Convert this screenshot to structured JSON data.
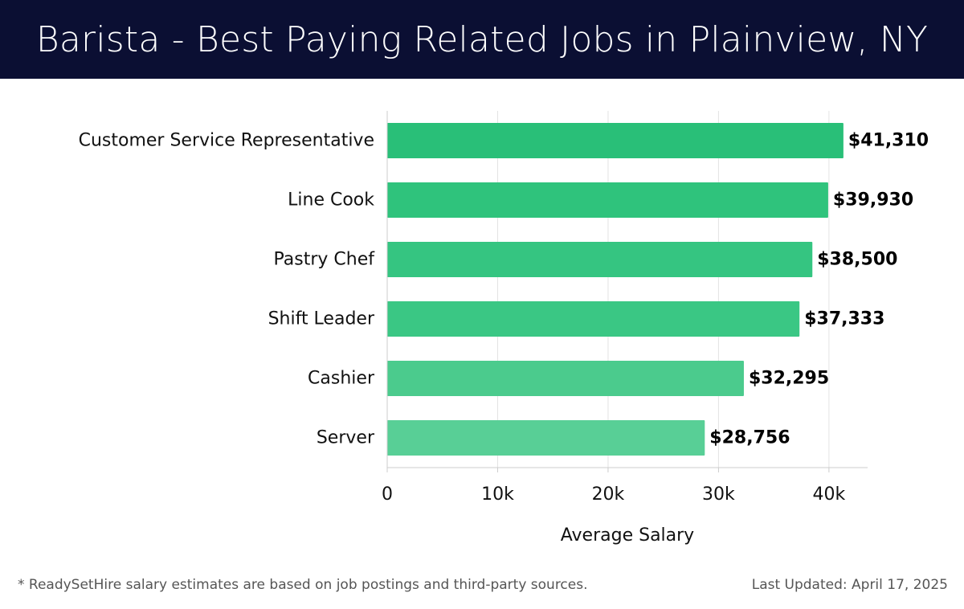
{
  "header": {
    "title": "Barista - Best Paying Related Jobs in Plainview, NY"
  },
  "colors": {
    "header_bg": "#0b0f33",
    "bar_gradient": [
      "#29bf78",
      "#2fc37c",
      "#35c581",
      "#3ac784",
      "#4bcb8d",
      "#58cf96"
    ]
  },
  "chart_data": {
    "type": "bar",
    "orientation": "horizontal",
    "categories": [
      "Customer Service Representative",
      "Line Cook",
      "Pastry Chef",
      "Shift Leader",
      "Cashier",
      "Server"
    ],
    "values": [
      41310,
      39930,
      38500,
      37333,
      32295,
      28756
    ],
    "value_labels": [
      "$41,310",
      "$39,930",
      "$38,500",
      "$37,333",
      "$32,295",
      "$28,756"
    ],
    "xlabel": "Average Salary",
    "ylabel": "",
    "xlim": [
      0,
      43500
    ],
    "xticks": [
      0,
      10000,
      20000,
      30000,
      40000
    ],
    "xtick_labels": [
      "0",
      "10k",
      "20k",
      "30k",
      "40k"
    ],
    "grid": "vertical"
  },
  "footer": {
    "note": "* ReadySetHire salary estimates are based on job postings and third-party sources.",
    "updated": "Last Updated: April 17, 2025"
  }
}
